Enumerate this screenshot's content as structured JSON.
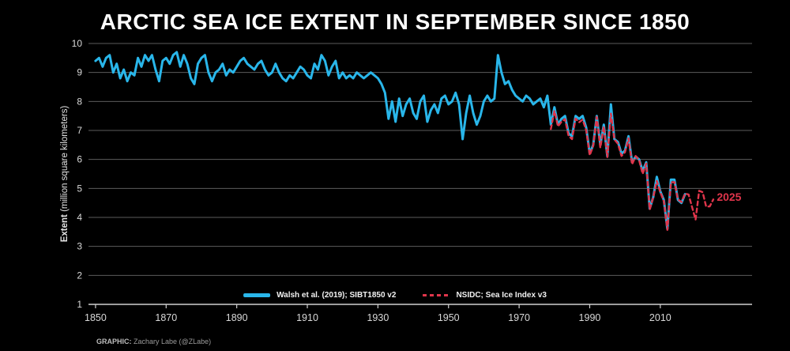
{
  "title": "ARCTIC SEA ICE EXTENT IN SEPTEMBER SINCE 1850",
  "yaxis": {
    "label_bold": "Extent",
    "label_rest": " (million square kilometers)"
  },
  "credit": {
    "prefix": "GRAPHIC:",
    "text": " Zachary Labe (@ZLabe)"
  },
  "annotation": {
    "text": "2025"
  },
  "chart_data": {
    "type": "line",
    "title": "ARCTIC SEA ICE EXTENT IN SEPTEMBER SINCE 1850",
    "xlabel": "",
    "ylabel": "Extent (million square kilometers)",
    "xlim": [
      1848,
      2036
    ],
    "ylim": [
      1,
      10
    ],
    "xticks": [
      1850,
      1870,
      1890,
      1910,
      1930,
      1950,
      1970,
      1990,
      2010
    ],
    "yticks": [
      1,
      2,
      3,
      4,
      5,
      6,
      7,
      8,
      9,
      10
    ],
    "grid": "horizontal",
    "grid_color": "#5c5c5c",
    "axis_color": "#cfcfcf",
    "tick_color": "#d9d9d9",
    "background": "#000000",
    "legend_position": "inside-bottom-center",
    "series": [
      {
        "name": "Walsh et al. (2019); SIBT1850 v2",
        "key": "walsh",
        "color": "#29b6ea",
        "line_style": "solid",
        "line_width": 3,
        "start_year": 1850,
        "values": [
          9.4,
          9.5,
          9.2,
          9.5,
          9.6,
          9.0,
          9.3,
          8.8,
          9.1,
          8.7,
          9.0,
          8.9,
          9.5,
          9.2,
          9.6,
          9.4,
          9.6,
          9.1,
          8.7,
          9.4,
          9.5,
          9.3,
          9.6,
          9.7,
          9.2,
          9.6,
          9.3,
          8.8,
          8.6,
          9.3,
          9.5,
          9.6,
          9.0,
          8.7,
          9.0,
          9.1,
          9.3,
          8.9,
          9.1,
          9.0,
          9.2,
          9.4,
          9.5,
          9.3,
          9.2,
          9.1,
          9.3,
          9.4,
          9.1,
          8.9,
          9.0,
          9.3,
          9.0,
          8.8,
          8.7,
          8.9,
          8.8,
          9.0,
          9.2,
          9.1,
          8.9,
          8.8,
          9.3,
          9.1,
          9.6,
          9.4,
          8.9,
          9.2,
          9.4,
          8.8,
          9.0,
          8.8,
          8.9,
          8.8,
          9.0,
          8.9,
          8.8,
          8.9,
          9.0,
          8.9,
          8.8,
          8.6,
          8.3,
          7.4,
          8.0,
          7.3,
          8.1,
          7.5,
          7.9,
          8.1,
          7.6,
          7.4,
          8.0,
          8.2,
          7.3,
          7.7,
          7.9,
          7.6,
          8.1,
          8.2,
          7.9,
          8.0,
          8.3,
          7.9,
          6.7,
          7.6,
          8.2,
          7.6,
          7.2,
          7.5,
          8.0,
          8.2,
          8.0,
          8.1,
          9.6,
          9.0,
          8.6,
          8.7,
          8.4,
          8.2,
          8.1,
          8.0,
          8.2,
          8.1,
          7.9,
          8.0,
          8.1,
          7.8,
          8.2,
          7.2,
          7.8,
          7.2,
          7.4,
          7.5,
          6.9,
          6.8,
          7.5,
          7.4,
          7.5,
          7.1,
          6.2,
          6.5,
          7.5,
          6.5,
          7.2,
          6.1,
          7.9,
          6.7,
          6.6,
          6.2,
          6.3,
          6.8,
          5.9,
          6.1,
          6.0,
          5.6,
          5.9,
          4.3,
          4.7,
          5.4,
          4.9,
          4.6,
          3.6,
          5.3,
          5.3,
          4.6,
          4.5,
          4.8
        ]
      },
      {
        "name": "NSIDC; Sea Ice Index v3",
        "key": "nsidc",
        "color": "#e0354b",
        "line_style": "dashed",
        "line_width": 2.4,
        "start_year": 1979,
        "values": [
          7.05,
          7.67,
          7.14,
          7.3,
          7.39,
          6.81,
          6.7,
          7.41,
          7.28,
          7.37,
          7.01,
          6.14,
          6.47,
          7.47,
          6.4,
          7.14,
          6.08,
          7.58,
          6.69,
          6.54,
          6.12,
          6.25,
          6.73,
          5.83,
          6.12,
          5.98,
          5.5,
          5.86,
          4.27,
          4.69,
          5.26,
          4.87,
          4.56,
          3.57,
          5.21,
          5.22,
          4.62,
          4.53,
          4.82,
          4.79,
          4.36,
          3.92,
          4.92,
          4.87,
          4.37,
          4.38,
          4.62
        ]
      }
    ],
    "annotations": [
      {
        "text": "2025",
        "x": 2026,
        "y": 4.7,
        "color": "#e0354b"
      }
    ]
  }
}
